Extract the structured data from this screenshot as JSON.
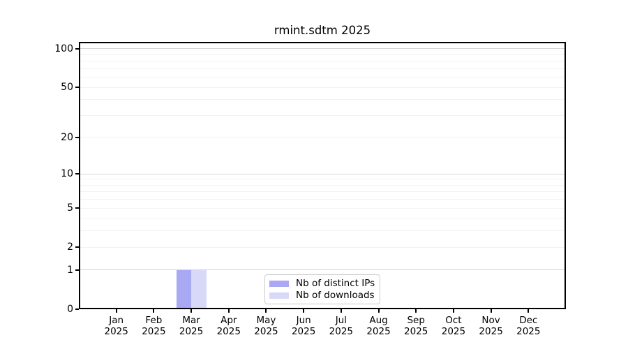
{
  "chart_data": {
    "type": "bar",
    "title": "rmint.sdtm 2025",
    "categories": [
      "Jan 2025",
      "Feb 2025",
      "Mar 2025",
      "Apr 2025",
      "May 2025",
      "Jun 2025",
      "Jul 2025",
      "Aug 2025",
      "Sep 2025",
      "Oct 2025",
      "Nov 2025",
      "Dec 2025"
    ],
    "x_ticks": [
      {
        "month": "Jan",
        "year": "2025"
      },
      {
        "month": "Feb",
        "year": "2025"
      },
      {
        "month": "Mar",
        "year": "2025"
      },
      {
        "month": "Apr",
        "year": "2025"
      },
      {
        "month": "May",
        "year": "2025"
      },
      {
        "month": "Jun",
        "year": "2025"
      },
      {
        "month": "Jul",
        "year": "2025"
      },
      {
        "month": "Aug",
        "year": "2025"
      },
      {
        "month": "Sep",
        "year": "2025"
      },
      {
        "month": "Oct",
        "year": "2025"
      },
      {
        "month": "Nov",
        "year": "2025"
      },
      {
        "month": "Dec",
        "year": "2025"
      }
    ],
    "series": [
      {
        "name": "Nb of distinct IPs",
        "color": "#a8a8f3",
        "values": [
          0,
          0,
          1,
          0,
          0,
          0,
          0,
          0,
          0,
          0,
          0,
          0
        ]
      },
      {
        "name": "Nb of downloads",
        "color": "#d8d8f8",
        "values": [
          0,
          0,
          1,
          0,
          0,
          0,
          0,
          0,
          0,
          0,
          0,
          0
        ]
      }
    ],
    "y_scale": "log10(1+v)",
    "y_ticks": [
      0,
      1,
      2,
      5,
      10,
      20,
      50,
      100
    ],
    "y_major_gridlines": [
      1,
      10,
      100
    ],
    "y_minor_gridlines": [
      2,
      3,
      4,
      5,
      6,
      7,
      8,
      9,
      20,
      30,
      40,
      50,
      60,
      70,
      80,
      90
    ],
    "ylim": [
      0,
      111
    ],
    "grid": true,
    "legend_position": "lower center"
  },
  "legend": {
    "items": [
      {
        "label": "Nb of distinct IPs",
        "color": "#a8a8f3"
      },
      {
        "label": "Nb of downloads",
        "color": "#d8d8f8"
      }
    ]
  }
}
